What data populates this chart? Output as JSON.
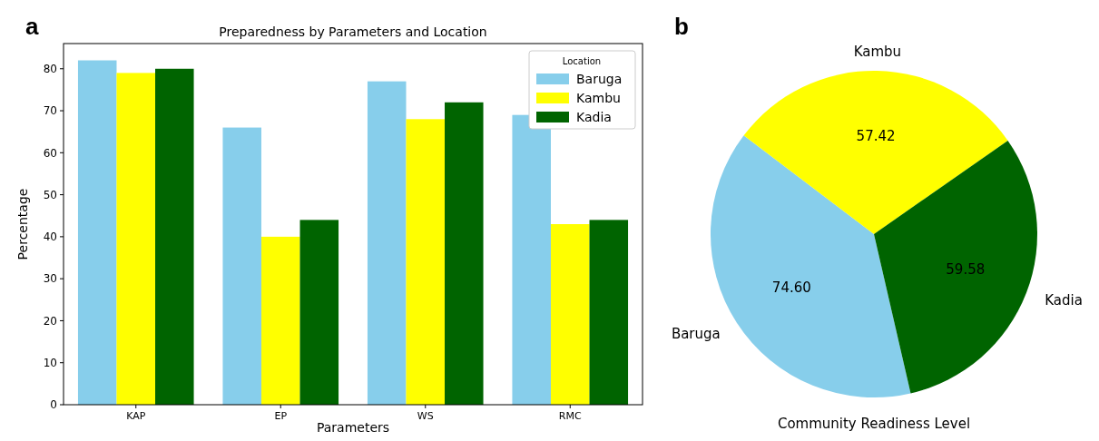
{
  "chart_data": [
    {
      "type": "bar",
      "title": "Preparedness by Parameters and Location",
      "xlabel": "Parameters",
      "ylabel": "Percentage",
      "legend_title": "Location",
      "annotations": [
        "a"
      ],
      "categories": [
        "KAP",
        "EP",
        "WS",
        "RMC"
      ],
      "series": [
        {
          "name": "Baruga",
          "color": "#87ceeb",
          "values": [
            82,
            66,
            77,
            69
          ]
        },
        {
          "name": "Kambu",
          "color": "#ffff00",
          "values": [
            79,
            40,
            68,
            43
          ]
        },
        {
          "name": "Kadia",
          "color": "#006400",
          "values": [
            80,
            44,
            72,
            44
          ]
        }
      ],
      "ylim": [
        0,
        86
      ],
      "yticks": [
        0,
        10,
        20,
        30,
        40,
        50,
        60,
        70,
        80
      ],
      "legend": "top right",
      "grid": false
    },
    {
      "type": "pie",
      "title": "Community Readiness Level",
      "annotations": [
        "b"
      ],
      "categories": [
        "Baruga",
        "Kambu",
        "Kadia"
      ],
      "values": [
        74.6,
        57.42,
        59.58
      ],
      "colors": [
        "#87ceeb",
        "#ffff00",
        "#006400"
      ],
      "value_labels": [
        "74.60",
        "57.42",
        "59.58"
      ]
    }
  ]
}
